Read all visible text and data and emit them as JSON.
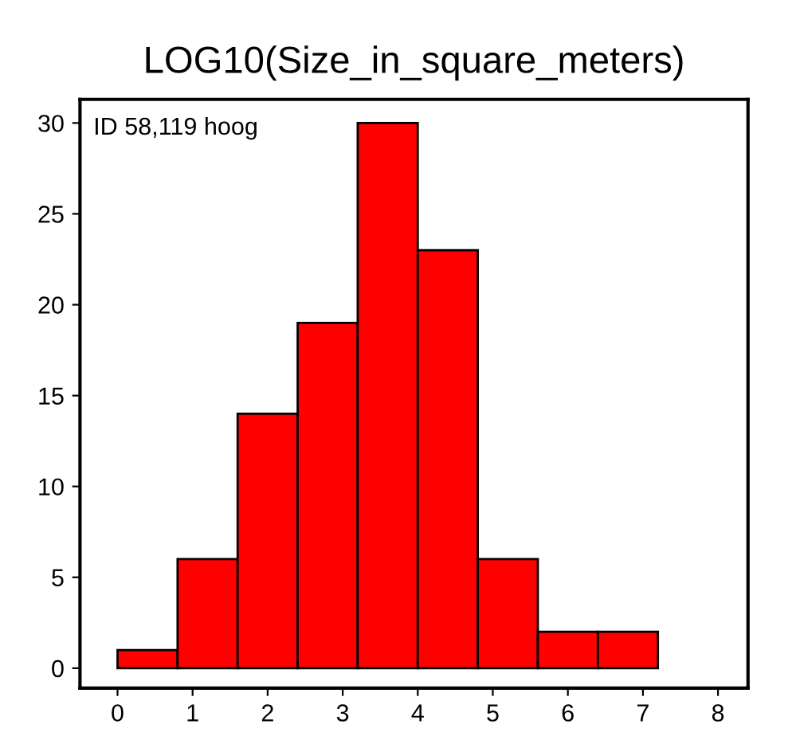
{
  "chart_data": {
    "type": "histogram",
    "title": "LOG10(Size_in_square_meters)",
    "annotations": [
      "ID 58,119 hoog"
    ],
    "bins": [
      0,
      0.8,
      1.6,
      2.4,
      3.2,
      4.0,
      4.8,
      5.6,
      6.4,
      7.2
    ],
    "values": [
      1,
      6,
      14,
      19,
      30,
      23,
      6,
      2,
      2
    ],
    "color": "#ff0000",
    "xlim": [
      -0.5,
      8.4
    ],
    "ylim": [
      -1.1,
      31.3
    ],
    "xticks": [
      0,
      1,
      2,
      3,
      4,
      5,
      6,
      7,
      8
    ],
    "yticks": [
      0,
      5,
      10,
      15,
      20,
      25,
      30
    ],
    "grid": false
  }
}
